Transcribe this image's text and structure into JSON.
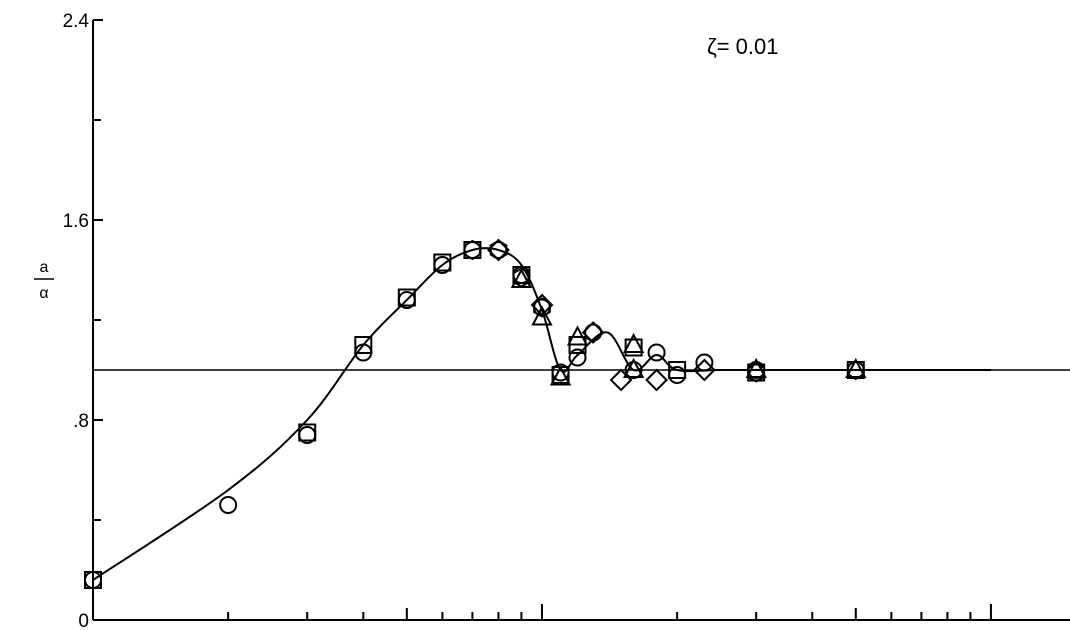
{
  "chart_data": {
    "type": "scatter",
    "title": "",
    "xlabel": "",
    "ylabel_numerator": "a",
    "ylabel_denominator": "α",
    "annotation": "ζ= 0.01",
    "x_scale": "log",
    "ylim": [
      0,
      2.4
    ],
    "y_ticks": [
      {
        "value": 0,
        "label": "0"
      },
      {
        "value": 0.8,
        "label": ".8"
      },
      {
        "value": 1.6,
        "label": "1.6"
      },
      {
        "value": 2.4,
        "label": "2.4"
      }
    ],
    "y_minor_ticks": [
      0.4,
      1.2,
      2.0
    ],
    "reference_line_y": 1.0,
    "legend": "none",
    "grid": false,
    "fit_curve": {
      "x": [
        0.1,
        0.2,
        0.3,
        0.4,
        0.5,
        0.6,
        0.7,
        0.8,
        0.9,
        1.0,
        1.1,
        1.2,
        1.4,
        1.6,
        1.8,
        2.0,
        2.5,
        3.0,
        5.0,
        10.0
      ],
      "y": [
        0.16,
        0.52,
        0.8,
        1.1,
        1.28,
        1.42,
        1.48,
        1.48,
        1.42,
        1.24,
        1.0,
        1.06,
        1.15,
        1.0,
        1.06,
        1.0,
        1.0,
        1.0,
        1.0,
        1.0
      ]
    },
    "series": [
      {
        "marker": "circle",
        "x": [
          0.1,
          0.2,
          0.3,
          0.4,
          0.5,
          0.6,
          0.7,
          0.8,
          0.9,
          1.0,
          1.1,
          1.2,
          1.3,
          1.6,
          1.8,
          2.0,
          2.3,
          3.0,
          5.0
        ],
        "y": [
          0.16,
          0.46,
          0.74,
          1.07,
          1.28,
          1.42,
          1.48,
          1.48,
          1.38,
          1.25,
          0.99,
          1.05,
          1.15,
          1.0,
          1.07,
          0.98,
          1.03,
          1.0,
          1.0
        ]
      },
      {
        "marker": "square",
        "x": [
          0.1,
          0.3,
          0.4,
          0.5,
          0.6,
          0.7,
          0.9,
          1.1,
          1.2,
          1.6,
          2.0,
          3.0,
          5.0
        ],
        "y": [
          0.16,
          0.75,
          1.1,
          1.29,
          1.43,
          1.48,
          1.38,
          0.98,
          1.1,
          1.09,
          1.0,
          0.99,
          1.0
        ]
      },
      {
        "marker": "triangle",
        "x": [
          0.9,
          1.0,
          1.1,
          1.2,
          1.6,
          1.6,
          3.0,
          5.0
        ],
        "y": [
          1.36,
          1.21,
          0.97,
          1.13,
          1.1,
          1.0,
          1.0,
          1.0
        ]
      },
      {
        "marker": "diamond",
        "x": [
          0.8,
          1.0,
          1.3,
          1.5,
          1.8,
          2.3
        ],
        "y": [
          1.48,
          1.26,
          1.15,
          0.96,
          0.96,
          1.0
        ]
      },
      {
        "marker": "hexagon",
        "x": [
          0.7,
          0.8,
          0.9,
          1.0,
          3.0,
          5.0
        ],
        "y": [
          1.48,
          1.48,
          1.37,
          1.25,
          0.99,
          1.0
        ]
      }
    ]
  }
}
